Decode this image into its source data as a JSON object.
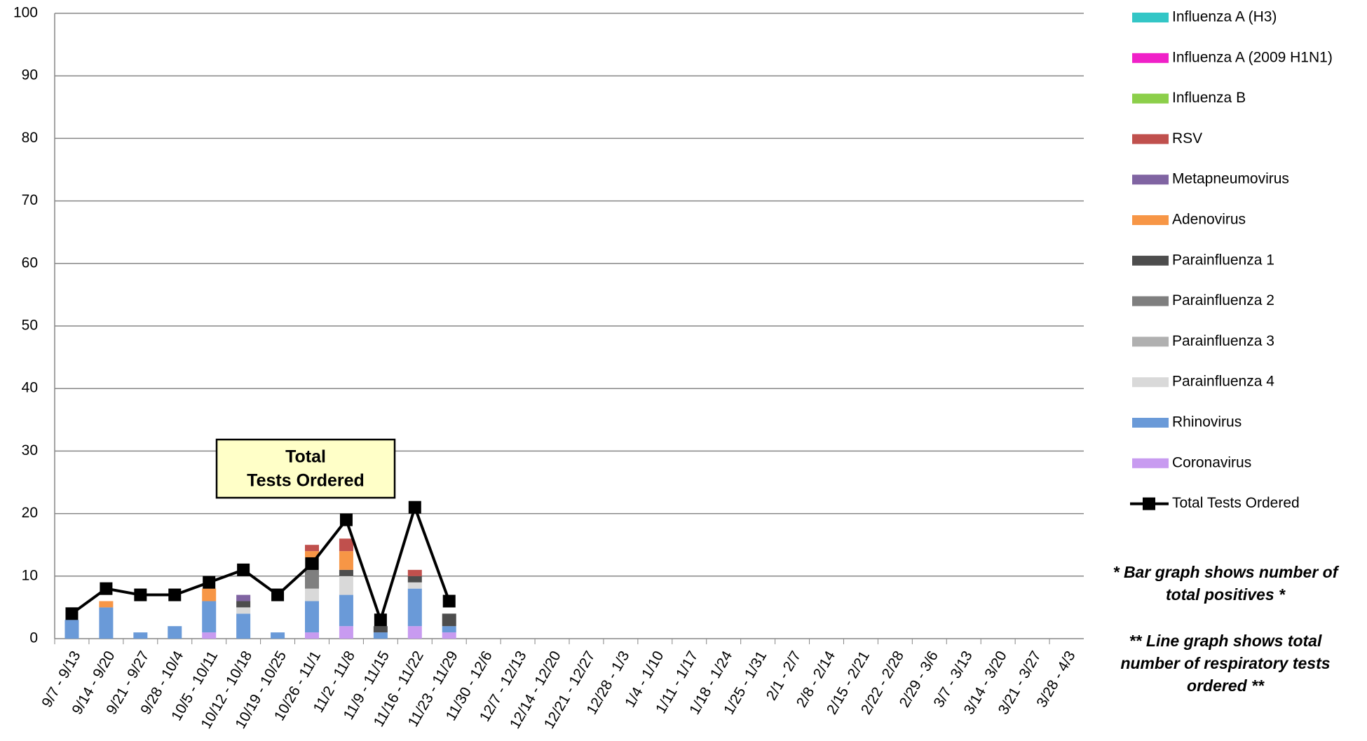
{
  "chart_data": {
    "type": "bar",
    "categories": [
      "9/7 - 9/13",
      "9/14 - 9/20",
      "9/21 - 9/27",
      "9/28 - 10/4",
      "10/5 - 10/11",
      "10/12 - 10/18",
      "10/19 - 10/25",
      "10/26 - 11/1",
      "11/2 - 11/8",
      "11/9 - 11/15",
      "11/16 - 11/22",
      "11/23 - 11/29",
      "11/30 - 12/6",
      "12/7 - 12/13",
      "12/14 - 12/20",
      "12/21 - 12/27",
      "12/28 - 1/3",
      "1/4 - 1/10",
      "1/11 - 1/17",
      "1/18 - 1/24",
      "1/25 - 1/31",
      "2/1 - 2/7",
      "2/8 - 2/14",
      "2/15 - 2/21",
      "2/22 - 2/28",
      "2/29 - 3/6",
      "3/7 - 3/13",
      "3/14 - 3/20",
      "3/21 - 3/27",
      "3/28 - 4/3"
    ],
    "series": [
      {
        "name": "Influenza A (H3)",
        "color": "#33c6c6",
        "values": [
          0,
          0,
          0,
          0,
          0,
          0,
          0,
          0,
          0,
          0,
          0,
          0,
          null,
          null,
          null,
          null,
          null,
          null,
          null,
          null,
          null,
          null,
          null,
          null,
          null,
          null,
          null,
          null,
          null,
          null
        ]
      },
      {
        "name": "Influenza A (2009 H1N1)",
        "color": "#f020c8",
        "values": [
          0,
          0,
          0,
          0,
          0,
          0,
          0,
          0,
          0,
          0,
          0,
          0,
          null,
          null,
          null,
          null,
          null,
          null,
          null,
          null,
          null,
          null,
          null,
          null,
          null,
          null,
          null,
          null,
          null,
          null
        ]
      },
      {
        "name": "Influenza B",
        "color": "#8ccf4a",
        "values": [
          0,
          0,
          0,
          0,
          0,
          0,
          0,
          0,
          0,
          0,
          0,
          0,
          null,
          null,
          null,
          null,
          null,
          null,
          null,
          null,
          null,
          null,
          null,
          null,
          null,
          null,
          null,
          null,
          null,
          null
        ]
      },
      {
        "name": "RSV",
        "color": "#c0504d",
        "values": [
          0,
          0,
          0,
          0,
          0,
          0,
          0,
          1,
          2,
          0,
          1,
          0,
          null,
          null,
          null,
          null,
          null,
          null,
          null,
          null,
          null,
          null,
          null,
          null,
          null,
          null,
          null,
          null,
          null,
          null
        ]
      },
      {
        "name": "Metapneumovirus",
        "color": "#8064a2",
        "values": [
          0,
          0,
          0,
          0,
          0,
          1,
          0,
          0,
          0,
          0,
          0,
          0,
          null,
          null,
          null,
          null,
          null,
          null,
          null,
          null,
          null,
          null,
          null,
          null,
          null,
          null,
          null,
          null,
          null,
          null
        ]
      },
      {
        "name": "Adenovirus",
        "color": "#f79646",
        "values": [
          0,
          1,
          0,
          0,
          2,
          0,
          0,
          1,
          3,
          0,
          0,
          0,
          null,
          null,
          null,
          null,
          null,
          null,
          null,
          null,
          null,
          null,
          null,
          null,
          null,
          null,
          null,
          null,
          null,
          null
        ]
      },
      {
        "name": "Parainfluenza 1",
        "color": "#4d4d4d",
        "values": [
          0,
          0,
          0,
          0,
          0,
          1,
          0,
          2,
          1,
          1,
          1,
          2,
          null,
          null,
          null,
          null,
          null,
          null,
          null,
          null,
          null,
          null,
          null,
          null,
          null,
          null,
          null,
          null,
          null,
          null
        ]
      },
      {
        "name": "Parainfluenza 2",
        "color": "#7f7f7f",
        "values": [
          0,
          0,
          0,
          0,
          0,
          0,
          0,
          3,
          0,
          0,
          0,
          0,
          null,
          null,
          null,
          null,
          null,
          null,
          null,
          null,
          null,
          null,
          null,
          null,
          null,
          null,
          null,
          null,
          null,
          null
        ]
      },
      {
        "name": "Parainfluenza 3",
        "color": "#b0b0b0",
        "values": [
          0,
          0,
          0,
          0,
          0,
          0,
          0,
          0,
          0,
          0,
          0,
          0,
          null,
          null,
          null,
          null,
          null,
          null,
          null,
          null,
          null,
          null,
          null,
          null,
          null,
          null,
          null,
          null,
          null,
          null
        ]
      },
      {
        "name": "Parainfluenza 4",
        "color": "#d9d9d9",
        "values": [
          0,
          0,
          0,
          0,
          0,
          1,
          0,
          2,
          3,
          0,
          1,
          0,
          null,
          null,
          null,
          null,
          null,
          null,
          null,
          null,
          null,
          null,
          null,
          null,
          null,
          null,
          null,
          null,
          null,
          null
        ]
      },
      {
        "name": "Rhinovirus",
        "color": "#6a9ad8",
        "values": [
          3,
          5,
          1,
          2,
          5,
          4,
          1,
          5,
          5,
          1,
          6,
          1,
          null,
          null,
          null,
          null,
          null,
          null,
          null,
          null,
          null,
          null,
          null,
          null,
          null,
          null,
          null,
          null,
          null,
          null
        ]
      },
      {
        "name": "Coronavirus",
        "color": "#c89bf0",
        "values": [
          0,
          0,
          0,
          0,
          1,
          0,
          0,
          1,
          2,
          0,
          2,
          1,
          null,
          null,
          null,
          null,
          null,
          null,
          null,
          null,
          null,
          null,
          null,
          null,
          null,
          null,
          null,
          null,
          null,
          null
        ]
      },
      {
        "name": "Total Tests Ordered",
        "type": "line",
        "color": "#000000",
        "values": [
          4,
          8,
          7,
          7,
          9,
          11,
          7,
          12,
          19,
          3,
          21,
          6,
          null,
          null,
          null,
          null,
          null,
          null,
          null,
          null,
          null,
          null,
          null,
          null,
          null,
          null,
          null,
          null,
          null,
          null
        ]
      }
    ],
    "ylim": [
      0,
      100
    ],
    "yticks": [
      0,
      10,
      20,
      30,
      40,
      50,
      60,
      70,
      80,
      90,
      100
    ],
    "grid": true,
    "callout": [
      "Total",
      "Tests Ordered"
    ],
    "notes": [
      "* Bar graph shows number of total positives *",
      "** Line graph shows total number of respiratory tests ordered **"
    ]
  }
}
